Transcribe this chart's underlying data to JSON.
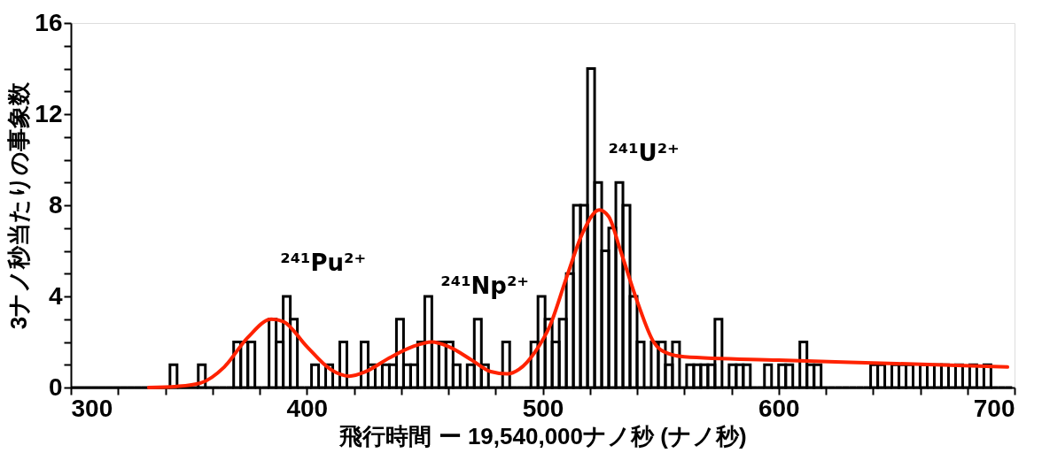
{
  "chart_data": {
    "type": "histogram",
    "xlabel": "飛行時間 ー 19,540,000ナノ秒 (ナノ秒)",
    "ylabel": "3ナノ秒当たりの事象数",
    "bins": [
      300,
      303,
      306,
      309,
      312,
      315,
      318,
      321,
      324,
      327,
      330,
      333,
      336,
      339,
      342,
      345,
      348,
      351,
      354,
      357,
      360,
      363,
      366,
      369,
      372,
      375,
      378,
      381,
      384,
      387,
      390,
      393,
      396,
      399,
      402,
      405,
      408,
      411,
      414,
      417,
      420,
      423,
      426,
      429,
      432,
      435,
      438,
      441,
      444,
      447,
      450,
      453,
      456,
      459,
      462,
      465,
      468,
      471,
      474,
      477,
      480,
      483,
      486,
      489,
      492,
      495,
      498,
      501,
      504,
      507,
      510,
      513,
      516,
      519,
      522,
      525,
      528,
      531,
      534,
      537,
      540,
      543,
      546,
      549,
      552,
      555,
      558,
      561,
      564,
      567,
      570,
      573,
      576,
      579,
      582,
      585,
      588,
      591,
      594,
      597,
      600,
      603,
      606,
      609,
      612,
      615,
      618,
      621,
      624,
      627,
      630,
      633,
      636,
      639,
      642,
      645,
      648,
      651,
      654,
      657,
      660,
      663,
      666,
      669,
      672,
      675,
      678,
      681,
      684,
      687,
      690,
      693,
      696,
      699
    ],
    "values": [
      0,
      0,
      0,
      0,
      0,
      0,
      0,
      0,
      0,
      0,
      0,
      0,
      0,
      0,
      1,
      0,
      0,
      0,
      1,
      0,
      0,
      0,
      0,
      2,
      2,
      2,
      0,
      0,
      3,
      2,
      4,
      3,
      0,
      0,
      1,
      0,
      1,
      0,
      2,
      0,
      0,
      2,
      1,
      0,
      1,
      1,
      3,
      1,
      1,
      2,
      4,
      2,
      2,
      2,
      1,
      0,
      1,
      3,
      1,
      0,
      0,
      2,
      0,
      0,
      0,
      2,
      4,
      3,
      2,
      3,
      5,
      8,
      8,
      14,
      9,
      6,
      7,
      9,
      8,
      4,
      2,
      0,
      2,
      2,
      1,
      2,
      0,
      1,
      1,
      1,
      1,
      3,
      0,
      1,
      1,
      1,
      0,
      0,
      1,
      0,
      1,
      1,
      0,
      2,
      1,
      1,
      0,
      0,
      0,
      0,
      0,
      0,
      0,
      1,
      1,
      0,
      1,
      1,
      1,
      0,
      1,
      0,
      1,
      1,
      0,
      1,
      0,
      1,
      0,
      1,
      0,
      0,
      0
    ],
    "color": "#000000",
    "series": [
      {
        "type": "line",
        "color": "#ff2200",
        "x": [
          333,
          345,
          355,
          365,
          375,
          385,
          390,
          400,
          410,
          418,
          425,
          435,
          445,
          453,
          460,
          470,
          478,
          485,
          490,
          497,
          503,
          510,
          517,
          524,
          528,
          533,
          540,
          547,
          553,
          560,
          600,
          650,
          697
        ],
        "values": [
          0,
          0.05,
          0.2,
          0.9,
          2.2,
          3.0,
          2.9,
          1.8,
          0.8,
          0.5,
          0.7,
          1.3,
          1.8,
          2.0,
          1.8,
          1.2,
          0.7,
          0.6,
          0.8,
          1.6,
          2.7,
          4.8,
          6.8,
          7.8,
          7.5,
          6.0,
          3.8,
          2.0,
          1.5,
          1.35,
          1.2,
          1.05,
          0.9
        ]
      }
    ],
    "annotations": [
      {
        "text": "²⁴¹Pu²⁺",
        "x": 385,
        "y": 3.0
      },
      {
        "text": "²⁴¹Np²⁺",
        "x": 453,
        "y": 2.0
      },
      {
        "text": "²⁴¹U²⁺",
        "x": 524,
        "y": 7.8
      }
    ],
    "xlim": [
      300,
      700
    ],
    "xticks": [
      300,
      {
        "value": 320,
        "label": null
      },
      {
        "value": 340,
        "label": null
      },
      {
        "value": 360,
        "label": null
      },
      {
        "value": 380,
        "label": null
      },
      400,
      {
        "value": 420,
        "label": null
      },
      {
        "value": 440,
        "label": null
      },
      {
        "value": 460,
        "label": null
      },
      {
        "value": 480,
        "label": null
      },
      500,
      {
        "value": 520,
        "label": null
      },
      {
        "value": 540,
        "label": null
      },
      {
        "value": 560,
        "label": null
      },
      {
        "value": 580,
        "label": null
      },
      600,
      {
        "value": 620,
        "label": null
      },
      {
        "value": 640,
        "label": null
      },
      {
        "value": 660,
        "label": null
      },
      {
        "value": 680,
        "label": null
      },
      700
    ],
    "ylim": [
      0,
      16
    ],
    "yticks": [
      0,
      {
        "value": 1,
        "label": null
      },
      {
        "value": 2,
        "label": null
      },
      {
        "value": 3,
        "label": null
      },
      4,
      {
        "value": 5,
        "label": null
      },
      {
        "value": 6,
        "label": null
      },
      {
        "value": 7,
        "label": null
      },
      8,
      {
        "value": 9,
        "label": null
      },
      {
        "value": 10,
        "label": null
      },
      {
        "value": 11,
        "label": null
      },
      12,
      {
        "value": 13,
        "label": null
      },
      {
        "value": 14,
        "label": null
      },
      {
        "value": 15,
        "label": null
      },
      16
    ],
    "grid": false,
    "marker": "none",
    "line_style": "solid"
  }
}
